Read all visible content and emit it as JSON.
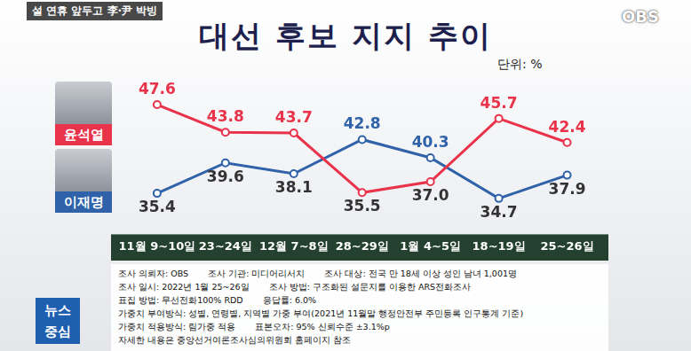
{
  "chart_data": {
    "type": "line",
    "title": "대선 후보 지지 추이",
    "subtitle": "단위: %",
    "headline": "설 연휴 앞두고 李·尹 박빙",
    "logo": "OBS",
    "program": "뉴스 중심",
    "categories": [
      "11월 9~10일",
      "23~24일",
      "12월 7~8일",
      "28~29일",
      "1월 4~5일",
      "18~19일",
      "25~26일"
    ],
    "series": [
      {
        "name": "윤석열",
        "color": "#e8334a",
        "marker": "circle",
        "values": [
          47.6,
          43.8,
          43.7,
          35.5,
          37.0,
          45.7,
          42.4
        ],
        "value_labels": [
          "47.6",
          "43.8",
          "43.7",
          "35.5",
          "37.0",
          "45.7",
          "42.4"
        ]
      },
      {
        "name": "이재명",
        "color": "#2f62a8",
        "marker": "circle",
        "values": [
          35.4,
          39.6,
          38.1,
          42.8,
          40.3,
          34.7,
          37.9
        ],
        "value_labels": [
          "35.4",
          "39.6",
          "38.1",
          "42.8",
          "40.3",
          "34.7",
          "37.9"
        ]
      }
    ],
    "ylim": [
      30,
      52
    ],
    "grid": false,
    "data_labels": true,
    "tick_labels": "x",
    "notes": [
      [
        "조사 의뢰자: OBS",
        "조사 기관: 미디어리서치",
        "조사 대상: 전국 만 18세 이상 성인 남녀 1,001명"
      ],
      [
        "조사 일시: 2022년 1월 25~26일",
        "조사 방법: 구조화된 설문지를 이용한 ARS전화조사"
      ],
      [
        "표집 방법: 무선전화100% RDD",
        "응답률: 6.0%"
      ],
      [
        "가중치 부여방식: 성별, 연령별, 지역별 가중 부여(2021년 11월말 행정안전부 주민등록 인구통계 기준)"
      ],
      [
        "가중치 적용방식: 림가중 적용",
        "표본오차: 95% 신뢰수준 ±3.1%p"
      ],
      [
        "자세한 내용은 중앙선거여론조사심의위원회 홈페이지 참조"
      ]
    ]
  }
}
